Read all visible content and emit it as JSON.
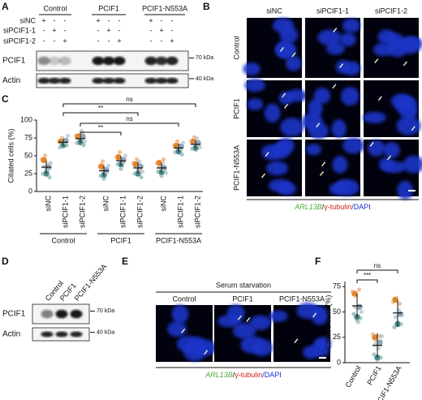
{
  "panel_labels": [
    "A",
    "B",
    "C",
    "D",
    "E",
    "F"
  ],
  "panel_a": {
    "group_headers": [
      "Control",
      "PCIF1",
      "PCIF1-N553A"
    ],
    "row_labels": [
      "siNC",
      "siPCIF1-1",
      "siPCIF1-2"
    ],
    "signs": [
      [
        "+",
        "-",
        "-",
        "+",
        "-",
        "-",
        "+",
        "-",
        "-"
      ],
      [
        "-",
        "+",
        "-",
        "-",
        "+",
        "-",
        "-",
        "+",
        "-"
      ],
      [
        "-",
        "-",
        "+",
        "-",
        "-",
        "+",
        "-",
        "-",
        "+"
      ]
    ],
    "blots": [
      {
        "label": "PCIF1",
        "marker": "70 kDa"
      },
      {
        "label": "Actin",
        "marker": "40 kDa"
      }
    ]
  },
  "panel_b": {
    "columns": [
      "siNC",
      "siPCIF1-1",
      "siPCIF1-2"
    ],
    "rows": [
      "Control",
      "PCIF1",
      "PCIF1-N553A"
    ],
    "caption": [
      "ARL13B",
      "/",
      "γ-tubulin",
      "/DAPI"
    ]
  },
  "panel_d": {
    "lanes": [
      "Control",
      "PCIF1",
      "PCIF1-N553A"
    ],
    "blots": [
      {
        "label": "PCIF1",
        "marker": "70 kDa"
      },
      {
        "label": "Actin",
        "marker": "40 kDa"
      }
    ]
  },
  "panel_e": {
    "condition": "Serum starvation",
    "columns": [
      "Control",
      "PCIF1",
      "PCIF1-N553A"
    ],
    "caption": [
      "ARL13B",
      "/",
      "γ-tubulin",
      "/DAPI"
    ]
  },
  "chart_data": [
    {
      "type": "superplot",
      "ylabel": "Ciliated cells (%)",
      "categories": [
        "siNC",
        "siPCIF1-1",
        "siPCIF1-2",
        "siNC",
        "siPCIF1-1",
        "siPCIF1-2",
        "siNC",
        "siPCIF1-1",
        "siPCIF1-2"
      ],
      "groups": [
        "Control",
        "PCIF1",
        "PCIF1-N553A"
      ],
      "ylim": [
        0,
        100
      ],
      "yticks": [
        0,
        25,
        50,
        75,
        100
      ],
      "annotations": [
        "ns",
        "**",
        "ns",
        "**"
      ],
      "replicates": [
        {
          "color": "#e3842c",
          "means": [
            44,
            70,
            77,
            35,
            48,
            38,
            40,
            64,
            70
          ],
          "points": [
            [
              45,
              50,
              38
            ],
            [
              70,
              75,
              66
            ],
            [
              78,
              72,
              82
            ],
            [
              35,
              42,
              28
            ],
            [
              48,
              55,
              40
            ],
            [
              40,
              45,
              30
            ],
            [
              40,
              35,
              45
            ],
            [
              64,
              70,
              58
            ],
            [
              70,
              76,
              64
            ]
          ]
        },
        {
          "color": "#4d8a8d",
          "means": [
            25,
            65,
            69,
            23,
            38,
            25,
            27,
            56,
            61
          ],
          "points": [
            [
              25,
              30,
              20
            ],
            [
              62,
              68,
              65
            ],
            [
              68,
              74,
              65
            ],
            [
              22,
              18,
              28
            ],
            [
              38,
              32,
              44
            ],
            [
              25,
              30,
              20
            ],
            [
              28,
              22,
              30
            ],
            [
              55,
              60,
              52
            ],
            [
              60,
              58,
              66
            ]
          ]
        },
        {
          "color": "#8fa6b8",
          "means": [
            34,
            71,
            77,
            30,
            44,
            35,
            33,
            63,
            68
          ],
          "points": [
            [
              35,
              28,
              40
            ],
            [
              72,
              64,
              78
            ],
            [
              76,
              85,
              70
            ],
            [
              30,
              24,
              36
            ],
            [
              45,
              36,
              50
            ],
            [
              36,
              42,
              28
            ],
            [
              34,
              40,
              26
            ],
            [
              62,
              58,
              68
            ],
            [
              68,
              74,
              62
            ]
          ]
        }
      ],
      "mean": [
        34,
        69,
        74,
        29,
        43,
        33,
        33,
        61,
        66
      ],
      "sd": [
        9,
        5,
        6,
        7,
        7,
        8,
        7,
        6,
        6
      ]
    },
    {
      "type": "superplot",
      "ylabel": "Ciliated cells (%)",
      "categories": [
        "Control",
        "PCIF1",
        "PCIF1-N553A"
      ],
      "ylim": [
        0,
        80
      ],
      "yticks": [
        0,
        25,
        50,
        75
      ],
      "annotations": [
        "ns",
        "***"
      ],
      "replicates": [
        {
          "color": "#e3842c",
          "means": [
            68,
            25,
            62
          ],
          "points": [
            [
              70,
              66,
              72
            ],
            [
              28,
              22,
              26
            ],
            [
              60,
              64,
              58
            ]
          ]
        },
        {
          "color": "#4d8a8d",
          "means": [
            45,
            5,
            38
          ],
          "points": [
            [
              48,
              42,
              44
            ],
            [
              8,
              3,
              5
            ],
            [
              35,
              40,
              38
            ]
          ]
        },
        {
          "color": "#8fa6b8",
          "means": [
            55,
            20,
            48
          ],
          "points": [
            [
              55,
              40,
              50
            ],
            [
              18,
              14,
              26
            ],
            [
              45,
              52,
              47
            ]
          ]
        }
      ],
      "mean": [
        56,
        17,
        49
      ],
      "sd": [
        12,
        12,
        13
      ]
    }
  ]
}
